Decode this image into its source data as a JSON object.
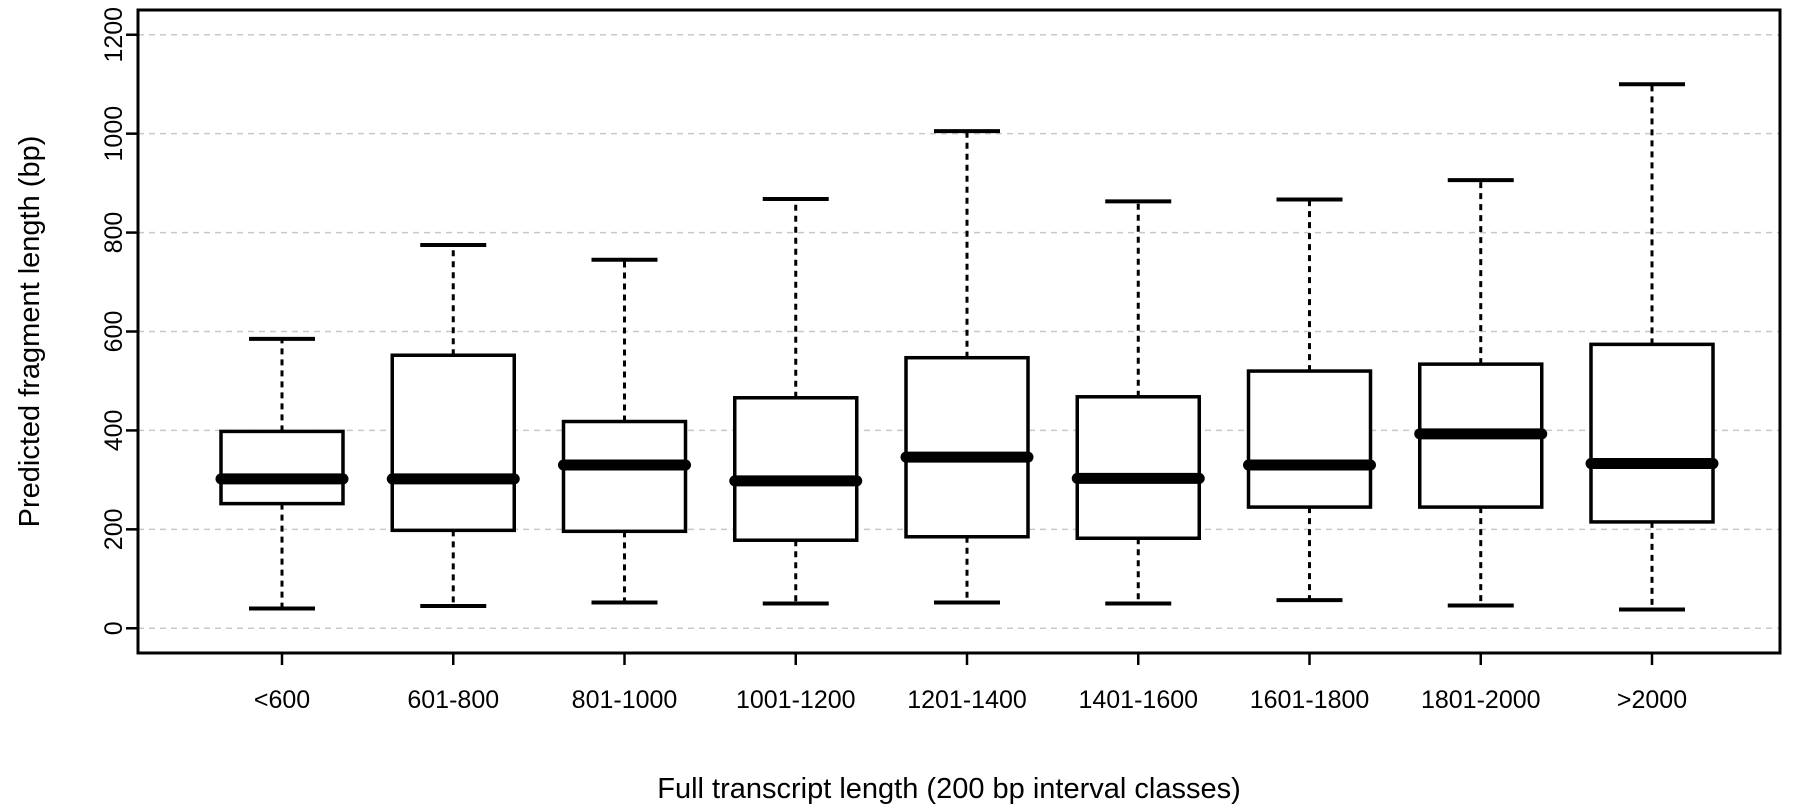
{
  "chart_data": {
    "type": "boxplot",
    "title": "",
    "xlabel": "Full transcript length (200 bp interval classes)",
    "ylabel": "Predicted fragment length (bp)",
    "ylim": [
      -50,
      1250
    ],
    "yticks": [
      0,
      200,
      400,
      600,
      800,
      1000,
      1200
    ],
    "grid": "horizontal dashed",
    "legend": "none",
    "categories": [
      "<600",
      "601-800",
      "801-1000",
      "1001-1200",
      "1201-1400",
      "1401-1600",
      "1601-1800",
      "1801-2000",
      ">2000"
    ],
    "boxes": [
      {
        "category": "<600",
        "whisker_low": 40,
        "q1": 252,
        "median": 302,
        "q3": 398,
        "whisker_high": 585
      },
      {
        "category": "601-800",
        "whisker_low": 45,
        "q1": 198,
        "median": 302,
        "q3": 552,
        "whisker_high": 775
      },
      {
        "category": "801-1000",
        "whisker_low": 52,
        "q1": 196,
        "median": 330,
        "q3": 418,
        "whisker_high": 745
      },
      {
        "category": "1001-1200",
        "whisker_low": 50,
        "q1": 178,
        "median": 298,
        "q3": 466,
        "whisker_high": 868
      },
      {
        "category": "1201-1400",
        "whisker_low": 52,
        "q1": 185,
        "median": 346,
        "q3": 547,
        "whisker_high": 1005
      },
      {
        "category": "1401-1600",
        "whisker_low": 50,
        "q1": 182,
        "median": 303,
        "q3": 468,
        "whisker_high": 863
      },
      {
        "category": "1601-1800",
        "whisker_low": 57,
        "q1": 245,
        "median": 330,
        "q3": 520,
        "whisker_high": 867
      },
      {
        "category": "1801-2000",
        "whisker_low": 46,
        "q1": 245,
        "median": 393,
        "q3": 534,
        "whisker_high": 906
      },
      {
        "category": ">2000",
        "whisker_low": 38,
        "q1": 215,
        "median": 333,
        "q3": 574,
        "whisker_high": 1100
      }
    ]
  }
}
